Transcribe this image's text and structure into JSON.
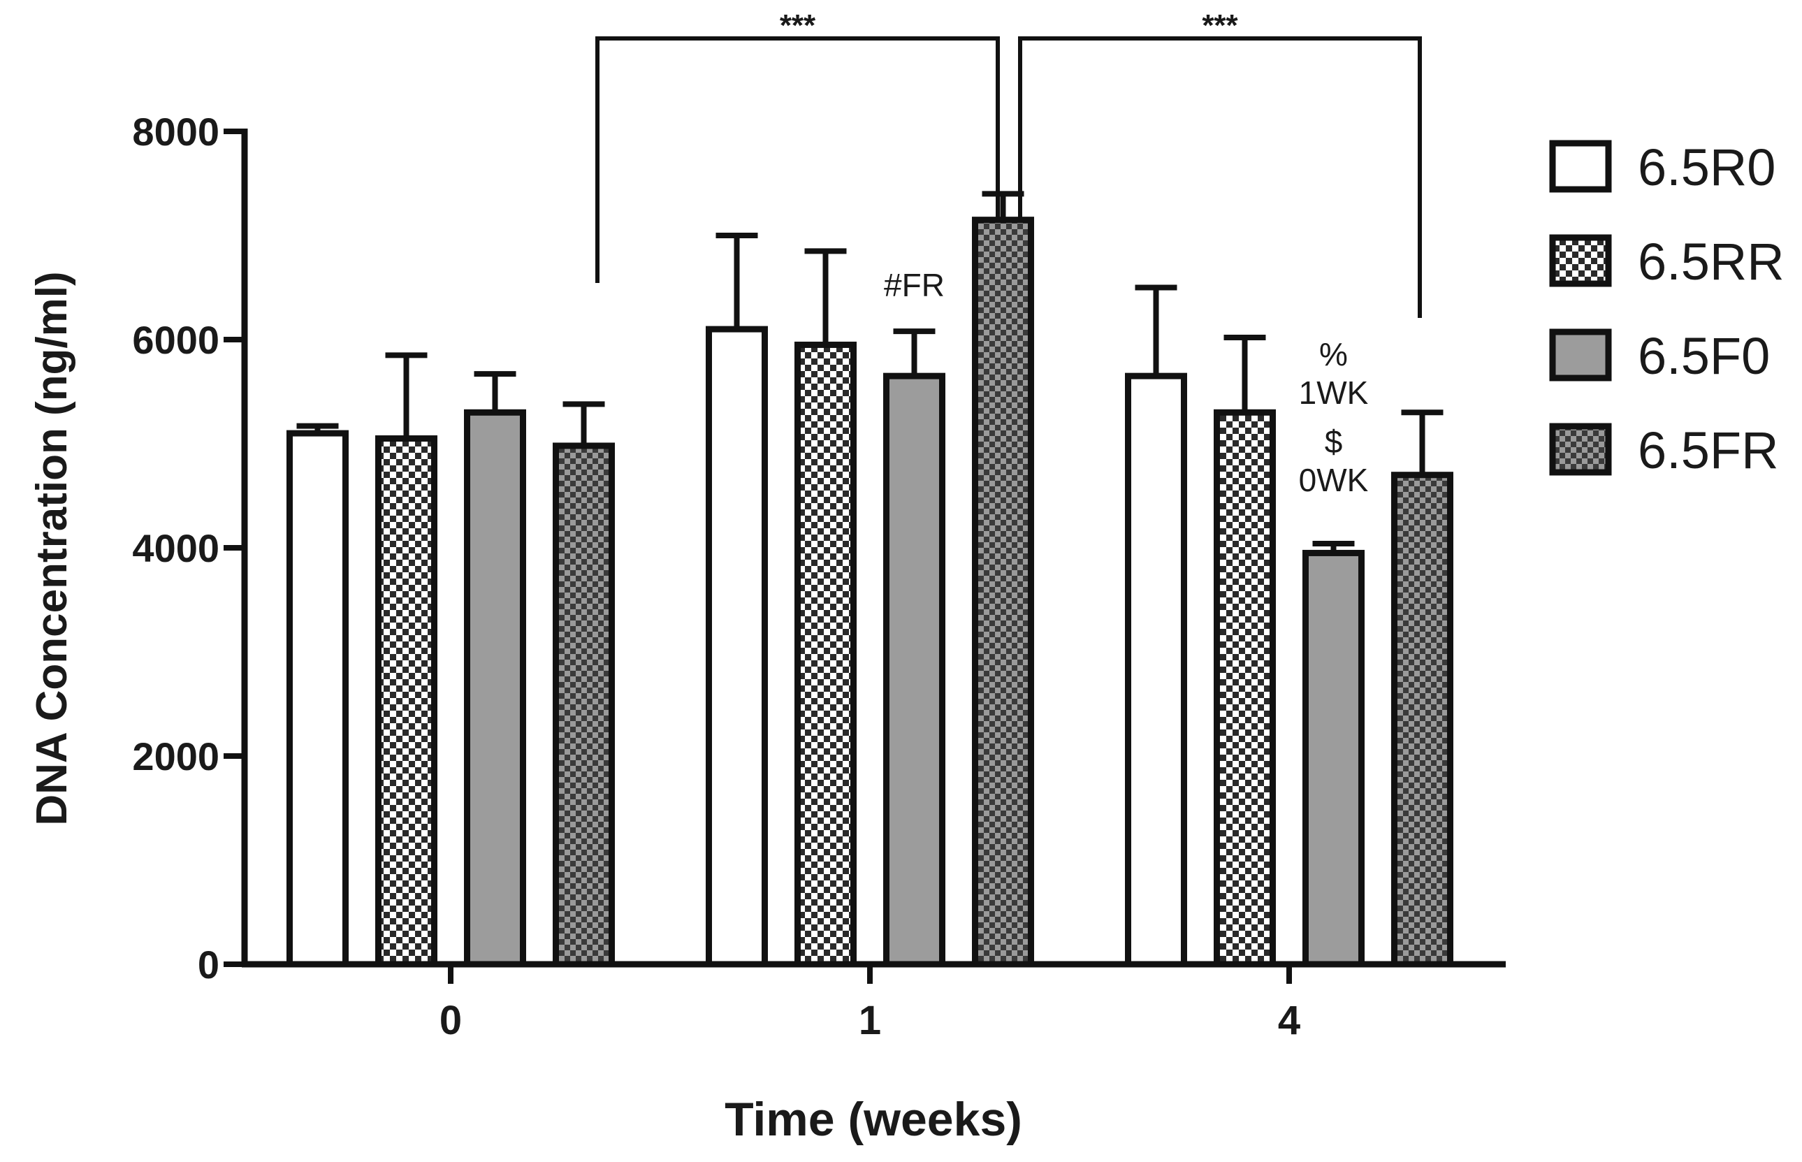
{
  "chart_data": {
    "type": "bar",
    "title": "",
    "xlabel": "Time (weeks)",
    "ylabel": "DNA Concentration (ng/ml)",
    "ylim": [
      0,
      8000
    ],
    "yticks": [
      0,
      2000,
      4000,
      6000,
      8000
    ],
    "categories": [
      "0",
      "1",
      "4"
    ],
    "legend_position": "right",
    "series": [
      {
        "name": "6.5R0",
        "pattern": "white",
        "values": [
          5100,
          6100,
          5650
        ],
        "errors": [
          70,
          900,
          850
        ]
      },
      {
        "name": "6.5RR",
        "pattern": "check-light",
        "values": [
          5050,
          5950,
          5300
        ],
        "errors": [
          800,
          900,
          720
        ]
      },
      {
        "name": "6.5F0",
        "pattern": "gray",
        "values": [
          5300,
          5650,
          3950
        ],
        "errors": [
          370,
          430,
          90
        ]
      },
      {
        "name": "6.5FR",
        "pattern": "check-dark",
        "values": [
          4980,
          7150,
          4700
        ],
        "errors": [
          400,
          250,
          600
        ]
      }
    ],
    "annotations": [
      {
        "text": "#FR",
        "category": "1",
        "series": "6.5F0"
      },
      {
        "text": "%",
        "category": "4",
        "series": "6.5F0"
      },
      {
        "text": "1WK",
        "category": "4",
        "series": "6.5F0"
      },
      {
        "text": "$",
        "category": "4",
        "series": "6.5F0"
      },
      {
        "text": "0WK",
        "category": "4",
        "series": "6.5F0"
      }
    ],
    "significance": [
      {
        "label": "***",
        "from": "0",
        "to": "1"
      },
      {
        "label": "***",
        "from": "1",
        "to": "4"
      }
    ]
  }
}
